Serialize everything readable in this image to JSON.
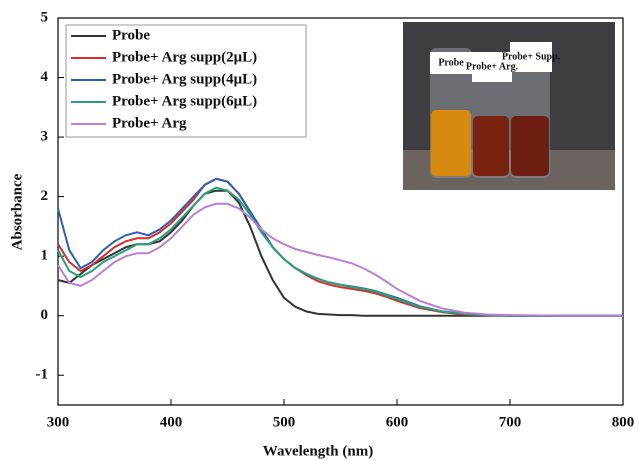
{
  "chart_data": {
    "type": "line",
    "x_label": "Wavelength (nm)",
    "y_label": "Absorbance",
    "x": [
      300,
      310,
      320,
      330,
      340,
      350,
      360,
      370,
      380,
      390,
      400,
      410,
      420,
      430,
      440,
      450,
      460,
      470,
      480,
      490,
      500,
      510,
      520,
      530,
      540,
      550,
      560,
      570,
      580,
      590,
      600,
      620,
      640,
      660,
      680,
      700,
      750,
      800
    ],
    "series": [
      {
        "name": "Probe",
        "color": "#333333",
        "values": [
          0.6,
          0.55,
          0.7,
          0.85,
          0.95,
          1.05,
          1.15,
          1.2,
          1.2,
          1.25,
          1.4,
          1.6,
          1.85,
          2.05,
          2.1,
          2.1,
          1.9,
          1.5,
          1.0,
          0.6,
          0.3,
          0.15,
          0.07,
          0.03,
          0.02,
          0.01,
          0.01,
          0,
          0,
          0,
          0,
          0,
          0,
          0,
          0,
          0,
          0,
          0
        ]
      },
      {
        "name": "Probe+ Arg supp(2μL)",
        "color": "#d62d2d",
        "values": [
          1.2,
          0.9,
          0.75,
          0.85,
          1.0,
          1.15,
          1.25,
          1.3,
          1.3,
          1.4,
          1.55,
          1.75,
          1.95,
          2.2,
          2.3,
          2.25,
          2.05,
          1.75,
          1.45,
          1.15,
          0.95,
          0.8,
          0.68,
          0.58,
          0.52,
          0.48,
          0.45,
          0.42,
          0.38,
          0.32,
          0.25,
          0.13,
          0.06,
          0.02,
          0.01,
          0,
          0,
          0
        ]
      },
      {
        "name": "Probe+ Arg supp(4μL)",
        "color": "#2b5fb4",
        "values": [
          1.8,
          1.1,
          0.8,
          0.9,
          1.1,
          1.25,
          1.35,
          1.4,
          1.35,
          1.45,
          1.6,
          1.8,
          2.0,
          2.2,
          2.3,
          2.25,
          2.05,
          1.75,
          1.45,
          1.15,
          0.95,
          0.8,
          0.7,
          0.62,
          0.56,
          0.52,
          0.49,
          0.46,
          0.42,
          0.36,
          0.3,
          0.16,
          0.07,
          0.03,
          0.01,
          0,
          0,
          0
        ]
      },
      {
        "name": "Probe+ Arg supp(6μL)",
        "color": "#2aa077",
        "values": [
          1.1,
          0.75,
          0.65,
          0.75,
          0.9,
          1.0,
          1.1,
          1.2,
          1.2,
          1.3,
          1.45,
          1.65,
          1.85,
          2.05,
          2.15,
          2.1,
          1.95,
          1.7,
          1.4,
          1.15,
          0.95,
          0.8,
          0.7,
          0.62,
          0.56,
          0.52,
          0.48,
          0.45,
          0.41,
          0.35,
          0.28,
          0.15,
          0.07,
          0.03,
          0.01,
          0,
          0,
          0
        ]
      },
      {
        "name": "Probe+ Arg",
        "color": "#b77fd6",
        "values": [
          0.85,
          0.55,
          0.5,
          0.6,
          0.75,
          0.9,
          1.0,
          1.05,
          1.05,
          1.15,
          1.3,
          1.5,
          1.7,
          1.82,
          1.88,
          1.88,
          1.8,
          1.65,
          1.45,
          1.3,
          1.2,
          1.12,
          1.07,
          1.02,
          0.98,
          0.93,
          0.88,
          0.8,
          0.7,
          0.58,
          0.45,
          0.25,
          0.12,
          0.05,
          0.02,
          0.01,
          0,
          0
        ]
      }
    ],
    "xlim": [
      300,
      800
    ],
    "xticks": [
      300,
      400,
      500,
      600,
      700,
      800
    ],
    "ylim": [
      -1.5,
      5
    ],
    "yticks": [
      -1,
      0,
      1,
      2,
      3,
      4,
      5
    ],
    "legend": "upper left",
    "inset_labels": [
      "Probe",
      "Probe+ Arg.",
      "Probe+ Supp."
    ]
  }
}
